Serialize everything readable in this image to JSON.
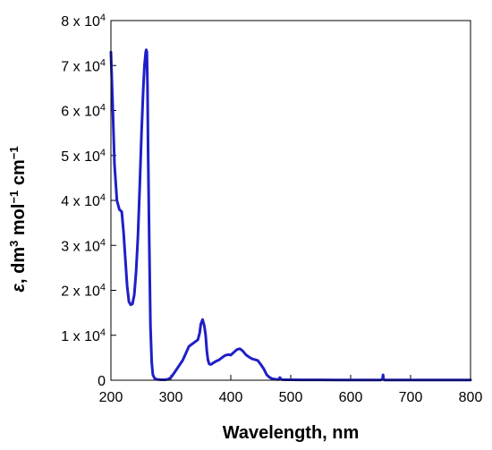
{
  "chart_data": {
    "type": "line",
    "title": "",
    "xlabel": "Wavelength, nm",
    "ylabel": {
      "symbol": "ε",
      "sep": ", dm",
      "exp1": "3",
      "mid": " mol",
      "exp2": "−1",
      "mid2": " cm",
      "exp3": "−1"
    },
    "xlim": [
      200,
      800
    ],
    "ylim": [
      0,
      80000
    ],
    "x_ticks": [
      200,
      300,
      400,
      500,
      600,
      700,
      800
    ],
    "y_ticks": [
      {
        "value": 0,
        "label": "0",
        "mant": "",
        "exp": ""
      },
      {
        "value": 10000,
        "label": "",
        "mant": "1 x 10",
        "exp": "4"
      },
      {
        "value": 20000,
        "label": "",
        "mant": "2 x 10",
        "exp": "4"
      },
      {
        "value": 30000,
        "label": "",
        "mant": "3 x 10",
        "exp": "4"
      },
      {
        "value": 40000,
        "label": "",
        "mant": "4 x 10",
        "exp": "4"
      },
      {
        "value": 50000,
        "label": "",
        "mant": "5 x 10",
        "exp": "4"
      },
      {
        "value": 60000,
        "label": "",
        "mant": "6 x 10",
        "exp": "4"
      },
      {
        "value": 70000,
        "label": "",
        "mant": "7 x 10",
        "exp": "4"
      },
      {
        "value": 80000,
        "label": "",
        "mant": "8 x 10",
        "exp": "4"
      }
    ],
    "grid": false,
    "series": [
      {
        "color": "#1f1fc8",
        "x": [
          200,
          203,
          206,
          210,
          214,
          218,
          221,
          224,
          227,
          230,
          233,
          236,
          239,
          242,
          245,
          248,
          251,
          254,
          256,
          258,
          259,
          260,
          261,
          262,
          264,
          266,
          268,
          270,
          273,
          276,
          280,
          285,
          290,
          295,
          300,
          305,
          310,
          315,
          320,
          325,
          330,
          335,
          340,
          345,
          348,
          350,
          353,
          356,
          358,
          360,
          362,
          364,
          366,
          368,
          370,
          375,
          380,
          385,
          390,
          395,
          400,
          405,
          410,
          415,
          420,
          425,
          430,
          435,
          440,
          445,
          450,
          455,
          460,
          465,
          470,
          475,
          480,
          482,
          484,
          486,
          490,
          500,
          520,
          550,
          580,
          600,
          620,
          640,
          650,
          653,
          654,
          655,
          656,
          657,
          660,
          680,
          700,
          720,
          750,
          780,
          800
        ],
        "y": [
          73000,
          61000,
          48000,
          40000,
          38000,
          37500,
          33000,
          27000,
          21000,
          17500,
          16800,
          17000,
          19000,
          24000,
          32000,
          43000,
          55000,
          65000,
          70000,
          73000,
          73500,
          73000,
          65000,
          52000,
          30000,
          12000,
          4000,
          1200,
          400,
          200,
          150,
          100,
          100,
          200,
          600,
          1500,
          2500,
          3500,
          4500,
          6000,
          7500,
          8000,
          8500,
          9000,
          10500,
          12500,
          13500,
          12000,
          10000,
          6500,
          4500,
          3600,
          3500,
          3600,
          3800,
          4200,
          4500,
          5000,
          5500,
          5700,
          5600,
          6200,
          6800,
          7000,
          6500,
          5700,
          5200,
          4800,
          4600,
          4400,
          3500,
          2500,
          1200,
          600,
          300,
          200,
          150,
          600,
          200,
          120,
          100,
          90,
          80,
          70,
          60,
          60,
          60,
          60,
          60,
          200,
          1200,
          300,
          60,
          50,
          50,
          50,
          40,
          40,
          40,
          30,
          30
        ]
      }
    ]
  }
}
